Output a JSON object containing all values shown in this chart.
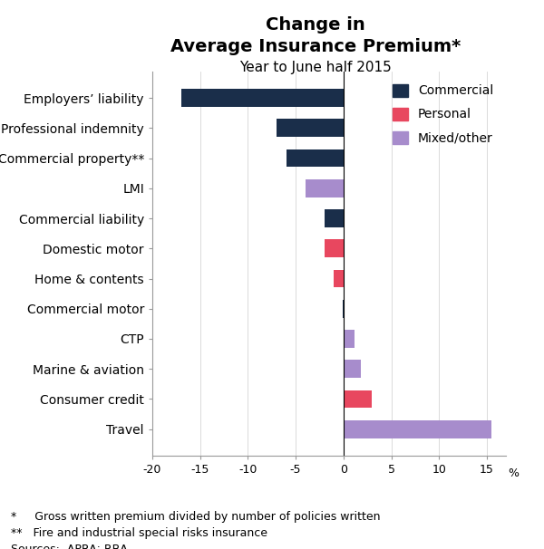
{
  "title_line1": "Change in",
  "title_line2": "Average Insurance Premium*",
  "subtitle": "Year to June half 2015",
  "categories": [
    "Employers’ liability",
    "Professional indemnity",
    "Commercial property**",
    "LMI",
    "Commercial liability",
    "Domestic motor",
    "Home & contents",
    "Commercial motor",
    "CTP",
    "Marine & aviation",
    "Consumer credit",
    "Travel"
  ],
  "values": [
    -17.0,
    -7.0,
    -6.0,
    -4.0,
    -2.0,
    -2.0,
    -1.0,
    -0.1,
    1.2,
    1.8,
    3.0,
    15.5
  ],
  "bar_types": [
    "Commercial",
    "Commercial",
    "Commercial",
    "Mixed/other",
    "Commercial",
    "Personal",
    "Personal",
    "Commercial",
    "Mixed/other",
    "Mixed/other",
    "Personal",
    "Mixed/other"
  ],
  "colors": {
    "Commercial": "#1a2e4a",
    "Personal": "#e8475f",
    "Mixed/other": "#a78ccc"
  },
  "xlim": [
    -20,
    17
  ],
  "xticks": [
    -20,
    -15,
    -10,
    -5,
    0,
    5,
    10,
    15
  ],
  "xlabel": "%",
  "legend_labels": [
    "Commercial",
    "Personal",
    "Mixed/other"
  ],
  "footnote1": "*     Gross written premium divided by number of policies written",
  "footnote2": "**   Fire and industrial special risks insurance",
  "footnote3": "Sources:  APRA; RBA",
  "bg_color": "#ffffff",
  "title_fontsize": 14,
  "subtitle_fontsize": 11,
  "label_fontsize": 10,
  "tick_fontsize": 9,
  "legend_fontsize": 10,
  "footnote_fontsize": 9
}
